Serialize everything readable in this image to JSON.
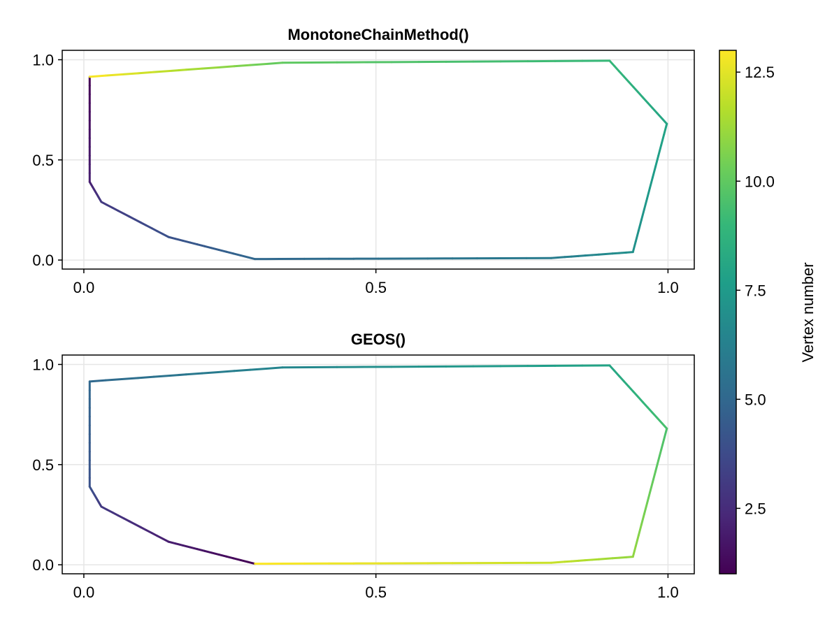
{
  "chart_data": [
    {
      "type": "line",
      "title": "MonotoneChainMethod()",
      "xlabel": "",
      "ylabel": "",
      "xlim": [
        -0.037,
        1.045
      ],
      "ylim": [
        -0.045,
        1.047
      ],
      "xticks": [
        0.0,
        0.5,
        1.0
      ],
      "xtick_labels": [
        "0.0",
        "0.5",
        "1.0"
      ],
      "yticks": [
        0.0,
        0.5,
        1.0
      ],
      "ytick_labels": [
        "0.0",
        "0.5",
        "1.0"
      ],
      "grid": true,
      "x": [
        0.01,
        0.01,
        0.03,
        0.145,
        0.293,
        0.8,
        0.94,
        0.998,
        0.9,
        0.34,
        0.01
      ],
      "y": [
        0.915,
        0.39,
        0.29,
        0.115,
        0.005,
        0.01,
        0.04,
        0.68,
        0.995,
        0.985,
        0.915
      ],
      "vertex_numbers": [
        1,
        2,
        3,
        4,
        5,
        6,
        7,
        8,
        9,
        10,
        13
      ]
    },
    {
      "type": "line",
      "title": "GEOS()",
      "xlabel": "",
      "ylabel": "",
      "xlim": [
        -0.037,
        1.045
      ],
      "ylim": [
        -0.045,
        1.047
      ],
      "xticks": [
        0.0,
        0.5,
        1.0
      ],
      "xtick_labels": [
        "0.0",
        "0.5",
        "1.0"
      ],
      "yticks": [
        0.0,
        0.5,
        1.0
      ],
      "ytick_labels": [
        "0.0",
        "0.5",
        "1.0"
      ],
      "grid": true,
      "x": [
        0.293,
        0.145,
        0.03,
        0.01,
        0.01,
        0.34,
        0.9,
        0.998,
        0.94,
        0.8,
        0.293
      ],
      "y": [
        0.005,
        0.115,
        0.29,
        0.39,
        0.915,
        0.985,
        0.995,
        0.68,
        0.04,
        0.01,
        0.005
      ],
      "vertex_numbers": [
        1,
        2,
        3,
        4,
        5,
        6.5,
        8,
        9.5,
        11,
        12,
        13
      ]
    }
  ],
  "colorbar": {
    "label": "Vertex number",
    "range": [
      1,
      13
    ],
    "ticks": [
      2.5,
      5.0,
      7.5,
      10.0,
      12.5
    ],
    "tick_labels": [
      "2.5",
      "5.0",
      "7.5",
      "10.0",
      "12.5"
    ],
    "colormap": "viridis",
    "colormap_stops": [
      "#440154",
      "#482878",
      "#3e4989",
      "#31688e",
      "#26828e",
      "#1f9e89",
      "#35b779",
      "#6ece58",
      "#b5de2b",
      "#fde725"
    ]
  },
  "colors": {
    "grid": "#e6e6e6",
    "axis": "#000000",
    "background": "#ffffff"
  }
}
